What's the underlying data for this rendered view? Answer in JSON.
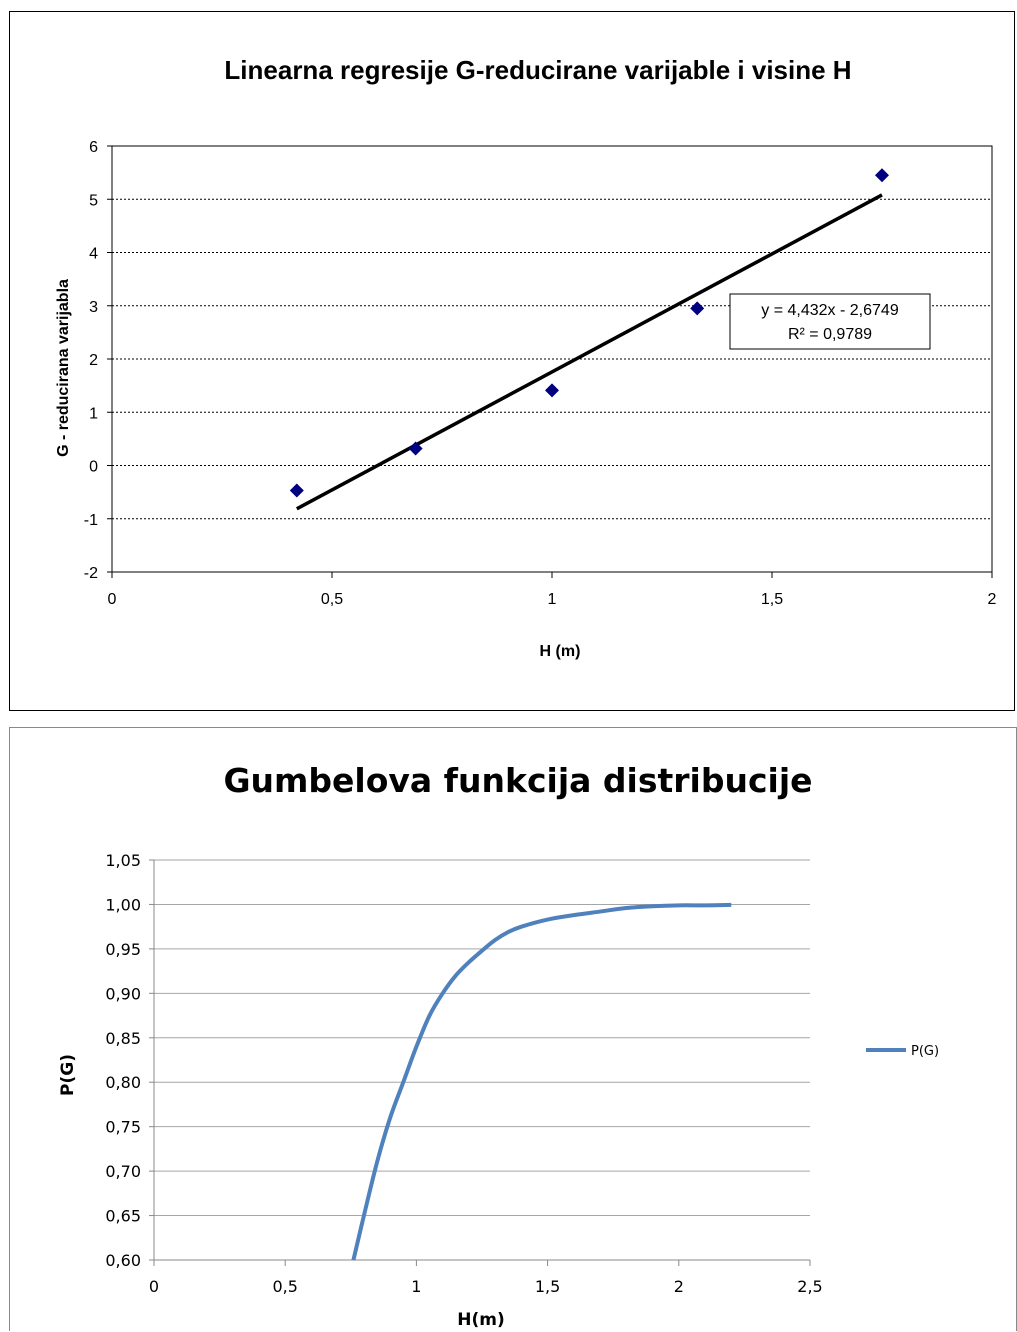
{
  "chart_data": [
    {
      "type": "scatter",
      "title": "Linearna regresije G-reducirane varijable i visine H",
      "xlabel": "H (m)",
      "ylabel": "G - reducirana varijabla",
      "xlim": [
        0,
        2
      ],
      "ylim": [
        -2,
        6
      ],
      "xticks": [
        "0",
        "0,5",
        "1",
        "1,5",
        "2"
      ],
      "yticks": [
        "-2",
        "-1",
        "0",
        "1",
        "2",
        "3",
        "4",
        "5",
        "6"
      ],
      "grid": "horizontal dotted",
      "legend": "none",
      "series": [
        {
          "x": [
            0.42,
            0.69,
            1.0,
            1.33,
            1.75
          ],
          "y": [
            -0.47,
            0.32,
            1.41,
            2.95,
            5.45
          ],
          "marker": "diamond",
          "color": "#000080"
        }
      ],
      "trendline": {
        "slope": 4.432,
        "intercept": -2.6749,
        "x_range": [
          0.42,
          1.75
        ],
        "equation": "y = 4,432x - 2,6749",
        "r_squared": "R² = 0,9789",
        "color": "#000000"
      }
    },
    {
      "type": "line",
      "title": "Gumbelova  funkcija distribucije",
      "xlabel": "H(m)",
      "ylabel": "P(G)",
      "xlim": [
        0,
        2.5
      ],
      "ylim": [
        0.6,
        1.05
      ],
      "xticks": [
        "0",
        "0,5",
        "1",
        "1,5",
        "2",
        "2,5"
      ],
      "yticks": [
        "0,60",
        "0,65",
        "0,70",
        "0,75",
        "0,80",
        "0,85",
        "0,90",
        "0,95",
        "1,00",
        "1,05"
      ],
      "grid": "horizontal",
      "legend": "right",
      "series": [
        {
          "name": "P(G)",
          "color": "#4F81BD",
          "x": [
            0.76,
            0.8,
            0.85,
            0.9,
            0.95,
            1.0,
            1.05,
            1.1,
            1.15,
            1.2,
            1.25,
            1.3,
            1.35,
            1.4,
            1.5,
            1.6,
            1.7,
            1.8,
            1.9,
            2.0,
            2.1,
            2.2
          ],
          "y": [
            0.6,
            0.65,
            0.71,
            0.76,
            0.8,
            0.84,
            0.875,
            0.9,
            0.92,
            0.935,
            0.948,
            0.96,
            0.969,
            0.975,
            0.983,
            0.988,
            0.992,
            0.996,
            0.998,
            0.999,
            0.999,
            0.9995
          ]
        }
      ]
    }
  ]
}
